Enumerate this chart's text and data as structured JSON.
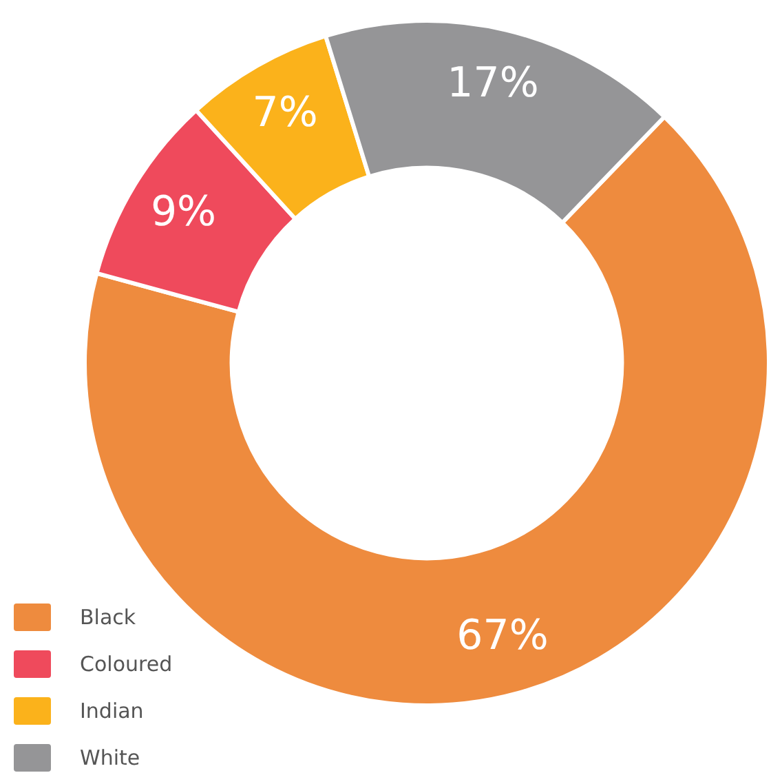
{
  "chart_data": {
    "type": "donut",
    "categories": [
      "Black",
      "Coloured",
      "Indian",
      "White"
    ],
    "values": [
      67,
      9,
      7,
      17
    ],
    "colors": [
      "#ee8b3e",
      "#ef4a5c",
      "#fbb21b",
      "#959597"
    ],
    "value_labels": [
      "67%",
      "9%",
      "7%",
      "17%"
    ],
    "legend": "bottom left"
  }
}
